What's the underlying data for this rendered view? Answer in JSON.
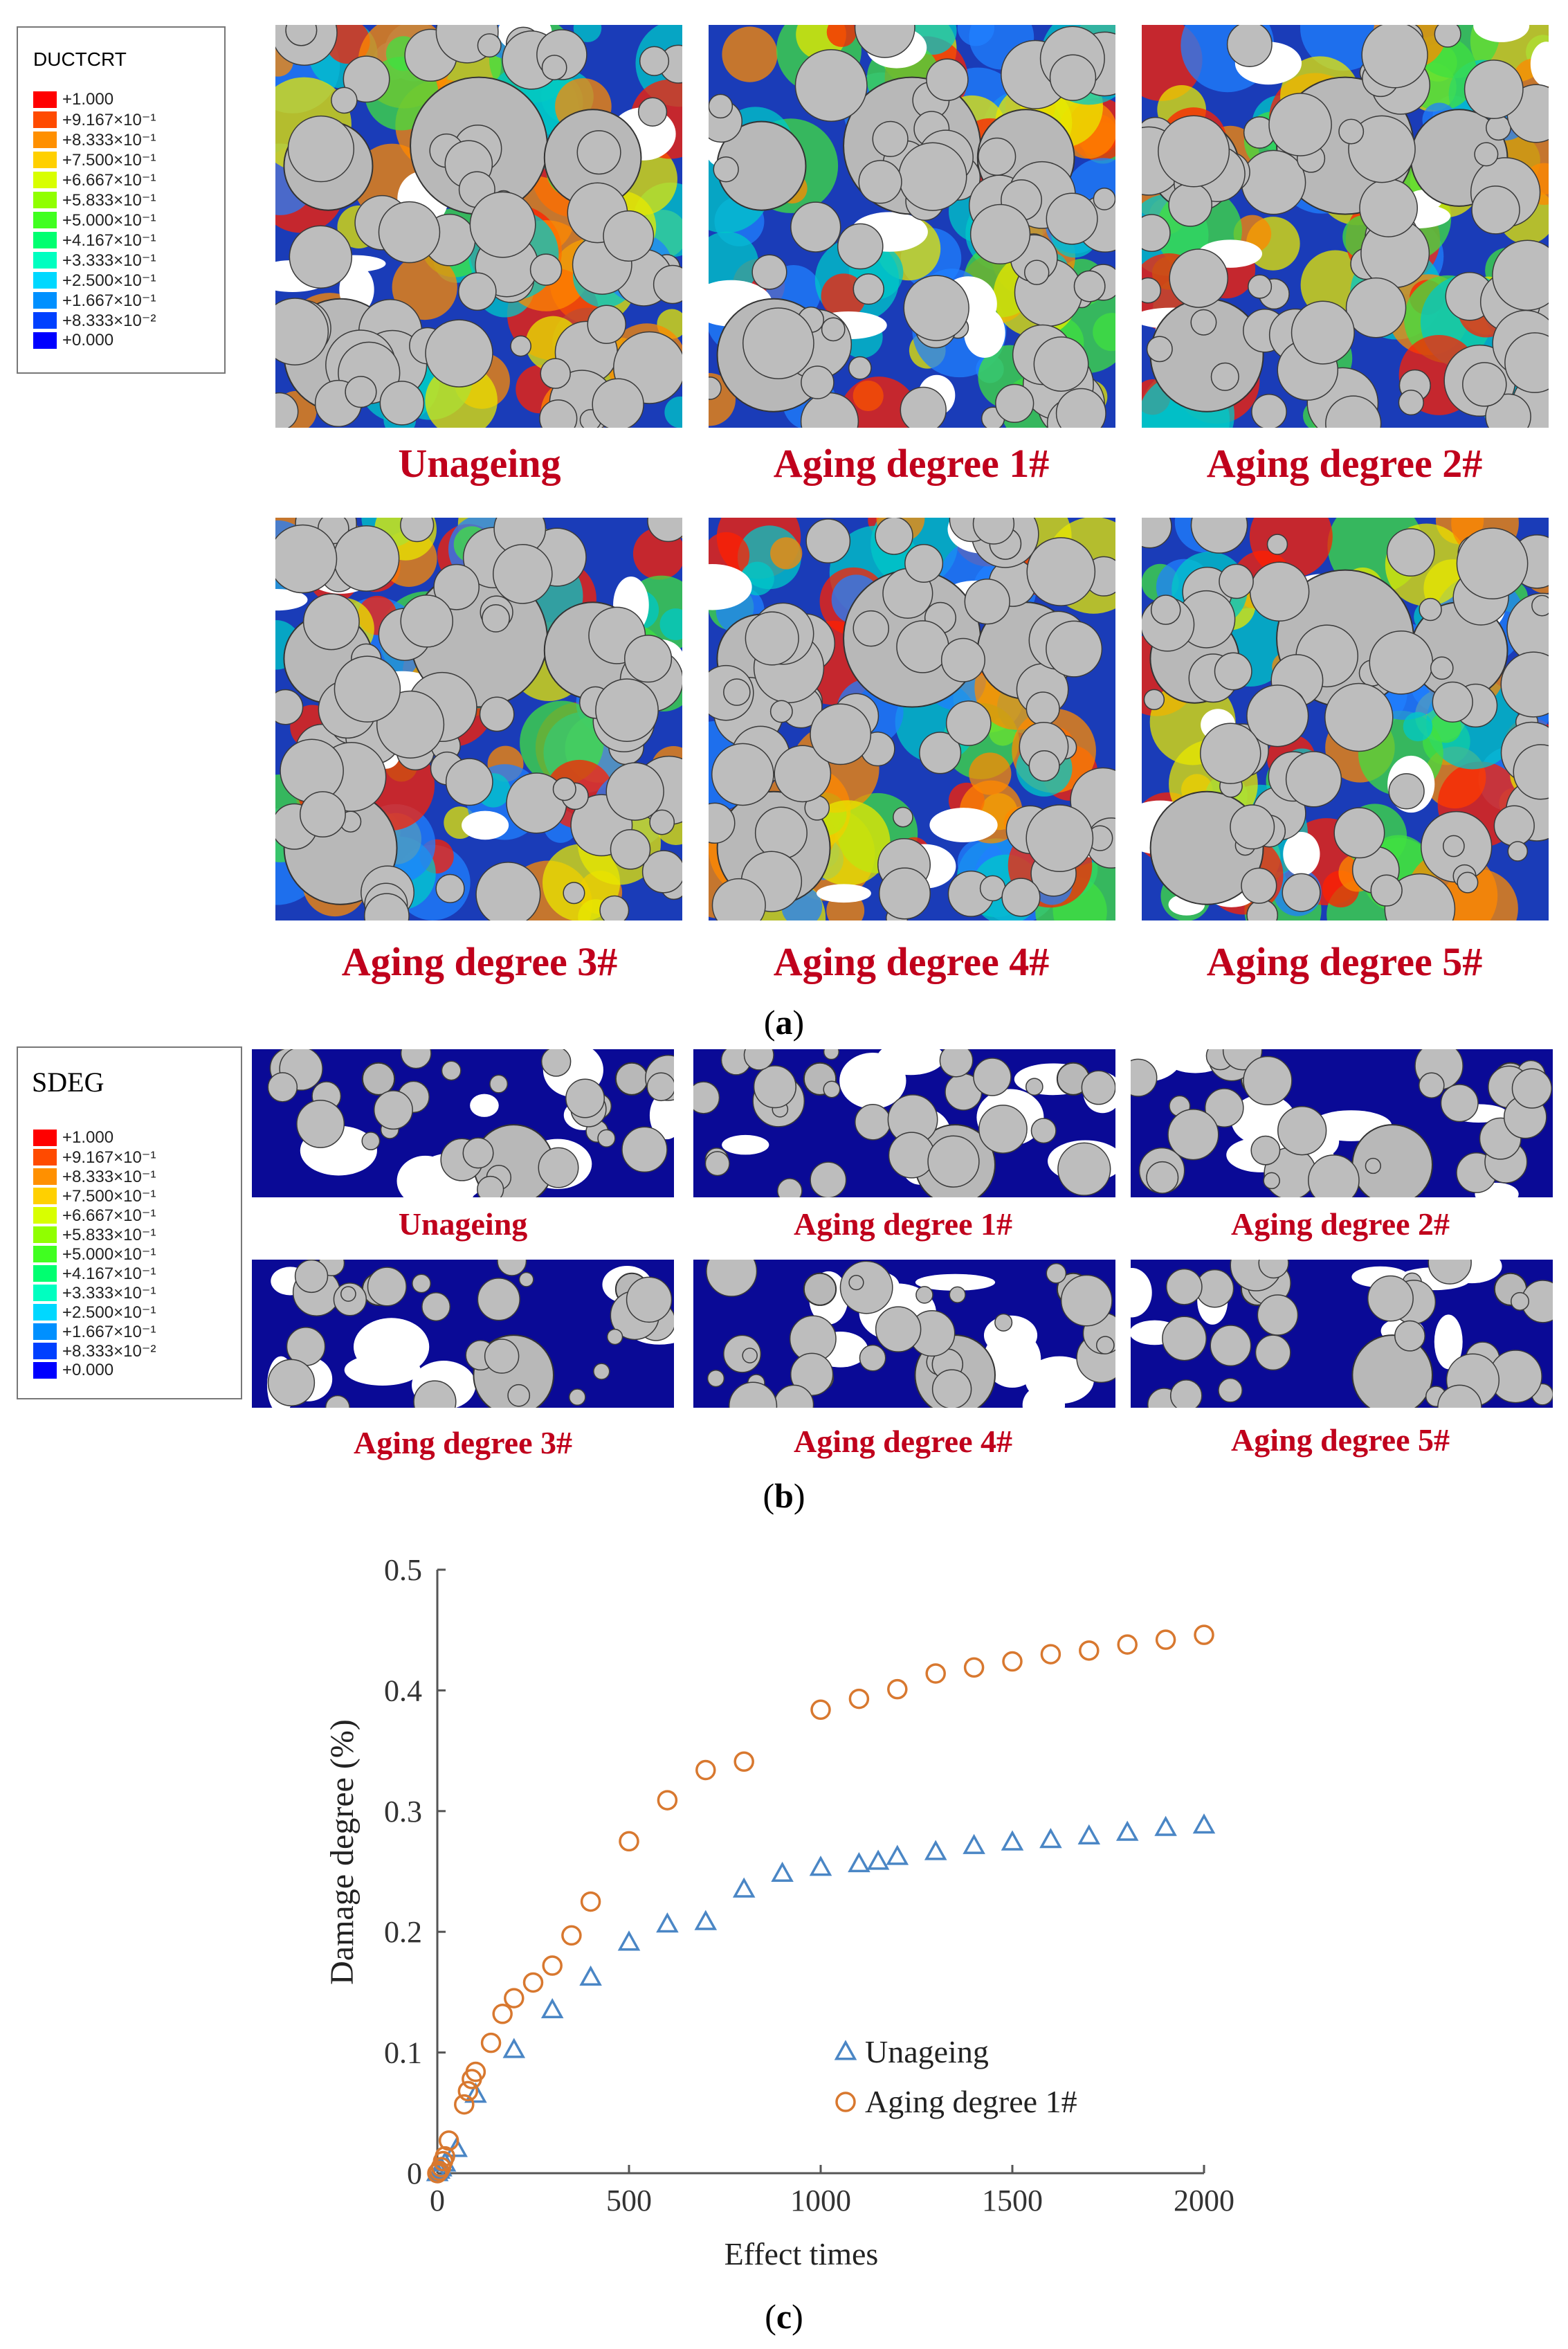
{
  "figure": {
    "section_a": {
      "legend_title": "DUCTCRT",
      "legend_labels": [
        "+1.000",
        "+9.167×10⁻¹",
        "+8.333×10⁻¹",
        "+7.500×10⁻¹",
        "+6.667×10⁻¹",
        "+5.833×10⁻¹",
        "+5.000×10⁻¹",
        "+4.167×10⁻¹",
        "+3.333×10⁻¹",
        "+2.500×10⁻¹",
        "+1.667×10⁻¹",
        "+8.333×10⁻²",
        "+0.000"
      ],
      "captions": [
        "Unageing",
        "Aging degree 1#",
        "Aging degree 2#",
        "Aging degree 3#",
        "Aging degree 4#",
        "Aging degree 5#"
      ],
      "label": "a"
    },
    "section_b": {
      "legend_title": "SDEG",
      "legend_labels": [
        "+1.000",
        "+9.167×10⁻¹",
        "+8.333×10⁻¹",
        "+7.500×10⁻¹",
        "+6.667×10⁻¹",
        "+5.833×10⁻¹",
        "+5.000×10⁻¹",
        "+4.167×10⁻¹",
        "+3.333×10⁻¹",
        "+2.500×10⁻¹",
        "+1.667×10⁻¹",
        "+8.333×10⁻²",
        "+0.000"
      ],
      "captions": [
        "Unageing",
        "Aging degree 1#",
        "Aging degree 2#",
        "Aging degree 3#",
        "Aging degree 4#",
        "Aging degree 5#"
      ],
      "label": "b"
    },
    "section_c": {
      "label": "c"
    },
    "colorscale": [
      "#ff0000",
      "#ff4a00",
      "#ff9000",
      "#ffd000",
      "#d8ff00",
      "#90ff00",
      "#40ff20",
      "#00ff70",
      "#00ffc0",
      "#00d8ff",
      "#0090ff",
      "#0040ff",
      "#0000ff"
    ],
    "colors": {
      "caption": "#c0001c",
      "series_unageing": "#4a86c5",
      "series_aging1": "#d8782f",
      "mesh_bg": "#0a0a96"
    }
  },
  "chart_data": {
    "type": "scatter",
    "title": "",
    "xlabel": "Effect times",
    "ylabel": "Damage degree  (%)",
    "xlim": [
      0,
      2000
    ],
    "ylim": [
      0,
      0.5
    ],
    "xticks": [
      0,
      500,
      1000,
      1500,
      2000
    ],
    "yticks": [
      0,
      0.1,
      0.2,
      0.3,
      0.4,
      0.5
    ],
    "legend_position": "bottom-right",
    "series": [
      {
        "name": "Unageing",
        "marker": "triangle",
        "x": [
          0,
          5,
          10,
          20,
          50,
          100,
          200,
          300,
          400,
          500,
          600,
          700,
          800,
          900,
          1000,
          1100,
          1150,
          1200,
          1300,
          1400,
          1500,
          1600,
          1700,
          1800,
          1900,
          2000
        ],
        "y": [
          0.0,
          0.002,
          0.004,
          0.008,
          0.02,
          0.065,
          0.102,
          0.135,
          0.162,
          0.191,
          0.206,
          0.208,
          0.235,
          0.248,
          0.253,
          0.256,
          0.258,
          0.262,
          0.266,
          0.271,
          0.274,
          0.276,
          0.279,
          0.282,
          0.286,
          0.288
        ]
      },
      {
        "name": "Aging degree 1#",
        "marker": "circle",
        "x": [
          0,
          5,
          10,
          15,
          20,
          30,
          70,
          80,
          90,
          100,
          140,
          170,
          200,
          250,
          300,
          350,
          400,
          500,
          600,
          700,
          800,
          1000,
          1100,
          1200,
          1300,
          1400,
          1500,
          1600,
          1700,
          1800,
          1900,
          2000
        ],
        "y": [
          0.0,
          0.002,
          0.005,
          0.01,
          0.014,
          0.027,
          0.057,
          0.068,
          0.078,
          0.084,
          0.108,
          0.132,
          0.145,
          0.158,
          0.172,
          0.197,
          0.225,
          0.275,
          0.309,
          0.334,
          0.341,
          0.384,
          0.393,
          0.401,
          0.414,
          0.419,
          0.424,
          0.43,
          0.433,
          0.438,
          0.442,
          0.446
        ]
      }
    ]
  }
}
